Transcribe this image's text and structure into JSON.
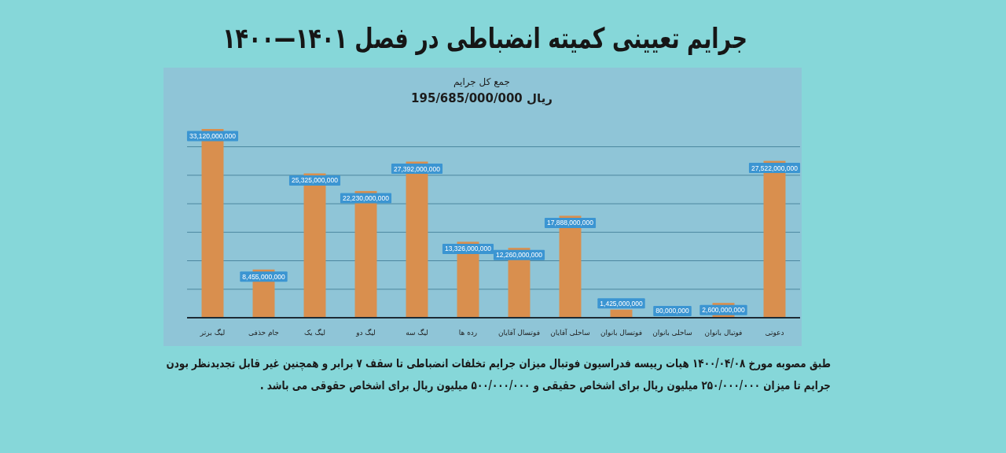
{
  "chart_data": {
    "type": "bar",
    "title": "جرایم تعیینی کمیته انضباطی در فصل ۱۴۰۱—۱۴۰۰",
    "subtitle": "جمع کل جرایم\n195/685/000/000 ریال",
    "categories": [
      "لیگ برتر",
      "جام حذفی",
      "لیگ یک",
      "لیگ دو",
      "لیگ سه",
      "رده ها",
      "فوتسال آقایان",
      "ساحلی آقایان",
      "فوتسال بانوان",
      "ساحلی بانوان",
      "فوتبال بانوان",
      "دعوتی"
    ],
    "values": [
      33120000000,
      8455000000,
      25325000000,
      22230000000,
      27392000000,
      13326000000,
      12260000000,
      17888000000,
      1425000000,
      80000000,
      2600000000,
      27522000000
    ],
    "value_labels": [
      "33,120,000,000",
      "8,455,000,000",
      "25,325,000,000",
      "22,230,000,000",
      "27,392,000,000",
      "13,326,000,000",
      "12,260,000,000",
      "17,888,000,000",
      "1,425,000,000",
      "80,000,000",
      "2,600,000,000",
      "27,522,000,000"
    ],
    "color": "#d98f4e",
    "ylim": [
      0,
      33120000000
    ],
    "yticks": [
      {
        "value": 0,
        "label": null
      },
      {
        "value": 5000000000,
        "label": null
      },
      {
        "value": 10000000000,
        "label": null
      },
      {
        "value": 15000000000,
        "label": null
      },
      {
        "value": 20000000000,
        "label": null
      },
      {
        "value": 25000000000,
        "label": null
      },
      {
        "value": 30000000000,
        "label": null
      }
    ],
    "grid": "y",
    "annotations": [
      "طبق مصوبه مورخ ۱۴۰۰/۰۴/۰۸ هیات رییسه فدراسیون فوتبال میزان جرایم تخلفات انضباطی تا سقف ۷ برابر و همچنین غیر قابل تجدیدنظر بودن جرایم تا میزان ۲۵۰/۰۰۰/۰۰۰ میلیون ریال برای اشخاص حقیقی و ۵۰۰/۰۰۰/۰۰۰ میلیون ریال برای اشخاص حقوقی می باشد ."
    ]
  }
}
